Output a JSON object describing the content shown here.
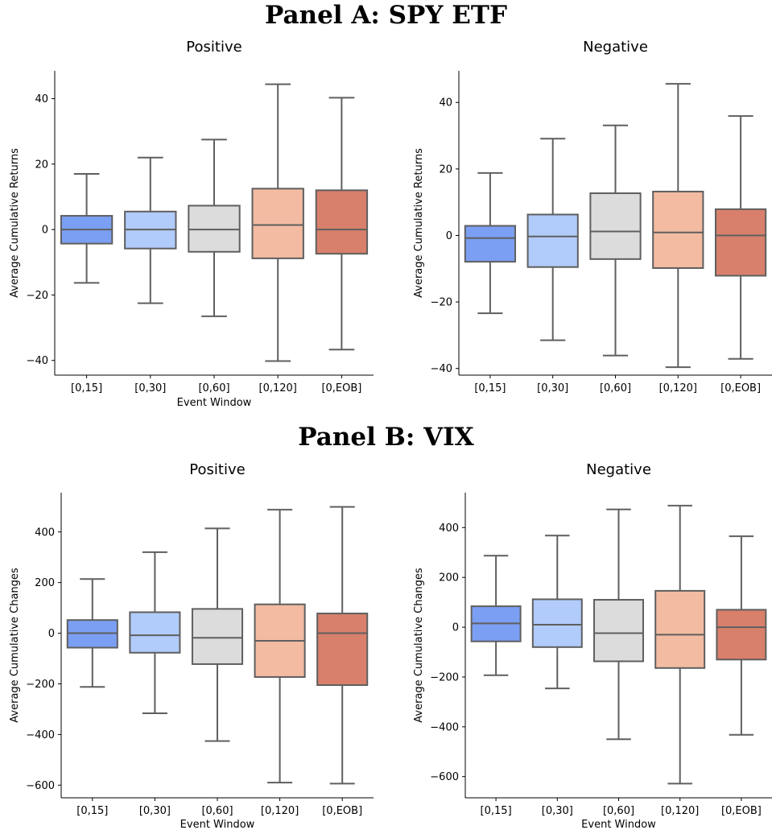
{
  "panels": [
    {
      "title": "Panel A: SPY ETF"
    },
    {
      "title": "Panel B: VIX"
    }
  ],
  "chart_data": [
    {
      "type": "box",
      "title": "Positive",
      "xlabel": "Event Window",
      "ylabel": "Average Cumulative Returns",
      "ylim": [
        -44.5,
        48.5
      ],
      "yticks": [
        -40,
        -20,
        0,
        20,
        40
      ],
      "ytick_labels": [
        "−40",
        "−20",
        "0",
        "20",
        "40"
      ],
      "categories": [
        "[0,15]",
        "[0,30]",
        "[0,60]",
        "[0,120]",
        "[0,EOB]"
      ],
      "boxes": [
        {
          "whislo": -16.3,
          "q1": -4.3,
          "med": 0.0,
          "q3": 4.2,
          "whishi": 17.0,
          "color": "#7b9ff2"
        },
        {
          "whislo": -22.5,
          "q1": -5.8,
          "med": 0.0,
          "q3": 5.5,
          "whishi": 22.0,
          "color": "#b1cbfa"
        },
        {
          "whislo": -26.5,
          "q1": -6.8,
          "med": 0.0,
          "q3": 7.3,
          "whishi": 27.5,
          "color": "#dcdcdc"
        },
        {
          "whislo": -40.2,
          "q1": -8.8,
          "med": 1.4,
          "q3": 12.5,
          "whishi": 44.4,
          "color": "#f2bba2"
        },
        {
          "whislo": -36.7,
          "q1": -7.4,
          "med": 0.0,
          "q3": 12.0,
          "whishi": 40.3,
          "color": "#d8806b"
        }
      ]
    },
    {
      "type": "box",
      "title": "Negative",
      "xlabel": "",
      "ylabel": "Average Cumulative Returns",
      "ylim": [
        -42,
        49.5
      ],
      "yticks": [
        -40,
        -20,
        0,
        20,
        40
      ],
      "ytick_labels": [
        "−40",
        "−20",
        "0",
        "20",
        "40"
      ],
      "categories": [
        "[0,15]",
        "[0,30]",
        "[0,60]",
        "[0,120]",
        "[0,EOB]"
      ],
      "boxes": [
        {
          "whislo": -23.4,
          "q1": -7.9,
          "med": -0.8,
          "q3": 2.9,
          "whishi": 18.8,
          "color": "#7b9ff2"
        },
        {
          "whislo": -31.5,
          "q1": -9.5,
          "med": -0.3,
          "q3": 6.3,
          "whishi": 29.1,
          "color": "#b1cbfa"
        },
        {
          "whislo": -36.1,
          "q1": -7.1,
          "med": 1.2,
          "q3": 12.7,
          "whishi": 33.1,
          "color": "#dcdcdc"
        },
        {
          "whislo": -39.6,
          "q1": -9.8,
          "med": 0.9,
          "q3": 13.2,
          "whishi": 45.6,
          "color": "#f2bba2"
        },
        {
          "whislo": -37.1,
          "q1": -12.1,
          "med": 0.0,
          "q3": 7.9,
          "whishi": 35.9,
          "color": "#d8806b"
        }
      ]
    },
    {
      "type": "box",
      "title": "Positive",
      "xlabel": "Event Window",
      "ylabel": "Average Cumulative Changes",
      "ylim": [
        -650,
        555
      ],
      "yticks": [
        -600,
        -400,
        -200,
        0,
        200,
        400
      ],
      "ytick_labels": [
        "−600",
        "−400",
        "−200",
        "0",
        "200",
        "400"
      ],
      "categories": [
        "[0,15]",
        "[0,30]",
        "[0,60]",
        "[0,120]",
        "[0,EOB]"
      ],
      "boxes": [
        {
          "whislo": -212,
          "q1": -57,
          "med": 0,
          "q3": 52,
          "whishi": 214,
          "color": "#7b9ff2"
        },
        {
          "whislo": -316,
          "q1": -77,
          "med": -8,
          "q3": 83,
          "whishi": 320,
          "color": "#b1cbfa"
        },
        {
          "whislo": -426,
          "q1": -122,
          "med": -18,
          "q3": 96,
          "whishi": 414,
          "color": "#dcdcdc"
        },
        {
          "whislo": -590,
          "q1": -173,
          "med": -30,
          "q3": 114,
          "whishi": 488,
          "color": "#f2bba2"
        },
        {
          "whislo": -594,
          "q1": -205,
          "med": 0,
          "q3": 78,
          "whishi": 499,
          "color": "#d8806b"
        }
      ]
    },
    {
      "type": "box",
      "title": "Negative",
      "xlabel": "Event Window",
      "ylabel": "Average Cumulative Changes",
      "ylim": [
        -685,
        540
      ],
      "yticks": [
        -600,
        -400,
        -200,
        0,
        200,
        400
      ],
      "ytick_labels": [
        "−600",
        "−400",
        "−200",
        "0",
        "200",
        "400"
      ],
      "categories": [
        "[0,15]",
        "[0,30]",
        "[0,60]",
        "[0,120]",
        "[0,EOB]"
      ],
      "boxes": [
        {
          "whislo": -193,
          "q1": -57,
          "med": 15,
          "q3": 84,
          "whishi": 287,
          "color": "#7b9ff2"
        },
        {
          "whislo": -246,
          "q1": -80,
          "med": 10,
          "q3": 112,
          "whishi": 368,
          "color": "#b1cbfa"
        },
        {
          "whislo": -450,
          "q1": -137,
          "med": -24,
          "q3": 110,
          "whishi": 473,
          "color": "#dcdcdc"
        },
        {
          "whislo": -628,
          "q1": -164,
          "med": -30,
          "q3": 146,
          "whishi": 488,
          "color": "#f2bba2"
        },
        {
          "whislo": -432,
          "q1": -130,
          "med": 0,
          "q3": 70,
          "whishi": 365,
          "color": "#d8806b"
        }
      ]
    }
  ]
}
